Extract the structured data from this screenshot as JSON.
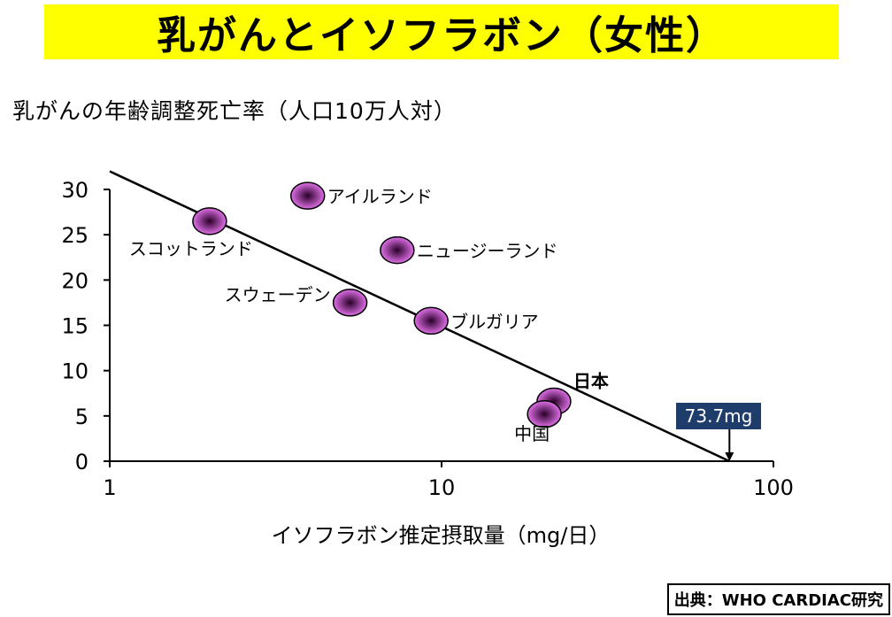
{
  "page": {
    "title": "乳がんとイソフラボン（女性）",
    "subtitle": "乳がんの年齢調整死亡率（人口10万人対）",
    "source": "出典：WHO CARDIAC研究"
  },
  "chart_data": {
    "type": "scatter",
    "title": "",
    "xlabel": "イソフラボン推定摂取量（mg/日）",
    "ylabel": "",
    "x_scale": "log",
    "xlim": [
      1,
      100
    ],
    "ylim": [
      0,
      30
    ],
    "x_ticks": [
      1,
      10,
      100
    ],
    "x_tick_labels": [
      "1",
      "10",
      "100"
    ],
    "y_ticks": [
      0,
      5,
      10,
      15,
      20,
      25,
      30
    ],
    "y_tick_labels": [
      "0",
      "5",
      "10",
      "15",
      "20",
      "25",
      "30"
    ],
    "points": [
      {
        "label": "スコットランド",
        "x": 2.0,
        "y": 26.5,
        "label_pos": "below-left"
      },
      {
        "label": "アイルランド",
        "x": 3.95,
        "y": 29.3,
        "label_pos": "right"
      },
      {
        "label": "ニュージーランド",
        "x": 7.35,
        "y": 23.3,
        "label_pos": "right"
      },
      {
        "label": "スウェーデン",
        "x": 5.3,
        "y": 17.5,
        "label_pos": "left"
      },
      {
        "label": "ブルガリア",
        "x": 9.3,
        "y": 15.5,
        "label_pos": "right"
      },
      {
        "label": "日本",
        "x": 21.8,
        "y": 6.6,
        "label_pos": "above-right",
        "bold": true
      },
      {
        "label": "中国",
        "x": 20.4,
        "y": 5.2,
        "label_pos": "below-left"
      }
    ],
    "trendline": {
      "x": [
        1,
        73.7
      ],
      "y": [
        32,
        0
      ]
    },
    "annotation": {
      "text": "73.7mg",
      "x": 73.7,
      "y": 0
    }
  },
  "colors": {
    "title_bg": "#ffff00",
    "point_center": "#2a0028",
    "point_edge": "#e070e8",
    "annotation_bg": "#1f3d6b",
    "annotation_text": "#ffffff"
  }
}
